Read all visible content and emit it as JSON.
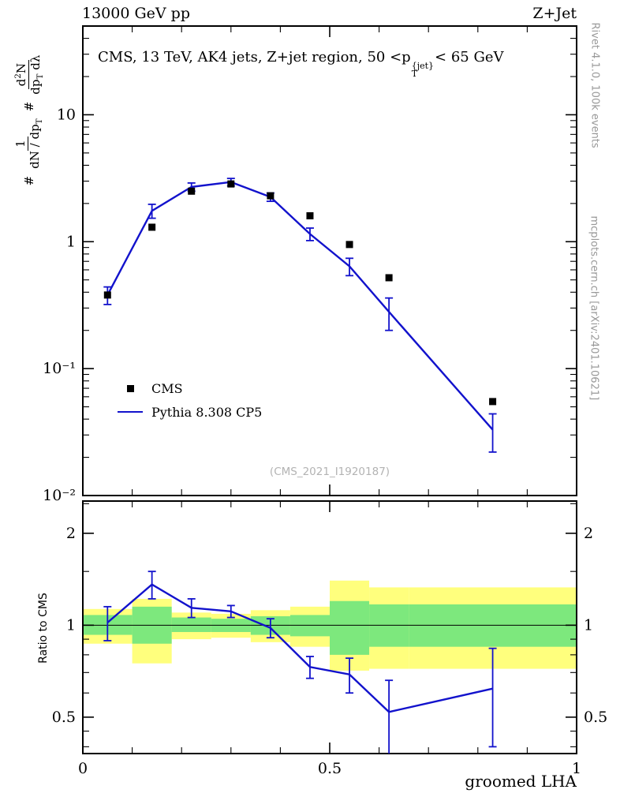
{
  "header": {
    "left": "13000 GeV pp",
    "right": "Z+Jet"
  },
  "title": {
    "part1": "CMS, 13 TeV, AK4 jets, Z+jet region, 50 <p",
    "sup": "{jet}",
    "sub": "T",
    "part2": "< 65 GeV"
  },
  "labels": {
    "ratio_ylabel": "Ratio to CMS",
    "side_top": "Rivet 4.1.0, 100k events",
    "side_bottom": "mcplots.cern.ch [arXiv:2401.10621]",
    "watermark": "(CMS_2021_I1920187)",
    "xlabel": "groomed LHA",
    "ylabel": {
      "hash1": "#",
      "frac1_num": "1",
      "frac1_den_a": "dN / dp",
      "frac1_den_sub": "T",
      "hash2": "#",
      "frac2_num_a": "d",
      "frac2_num_sup": "2",
      "frac2_num_b": "N",
      "frac2_den_a": "dp",
      "frac2_den_sub": "T",
      "frac2_den_b": " dλ"
    }
  },
  "legend": {
    "cms": "CMS",
    "pythia": "Pythia 8.308 CP5"
  },
  "colors": {
    "mc_line": "#1212cc",
    "data_marker": "#000000",
    "band_outer": "#ffff7d",
    "band_inner": "#7de87d"
  },
  "chart_data": {
    "type": "line",
    "title": "CMS, 13 TeV, AK4 jets, Z+jet region, 50 < pT{jet} < 65 GeV",
    "xlabel": "groomed LHA",
    "ylabel": "1/(dN/dpT) d2N/(dpT dλ)",
    "ratio_label": "Ratio to CMS",
    "legend_position": "middle-left",
    "grid": false,
    "xlim": [
      0,
      1
    ],
    "main_ylim_log": [
      0.01,
      50
    ],
    "ratio_ylim_log": [
      0.38,
      2.55
    ],
    "x_major_ticks": [
      {
        "v": 0,
        "label": "0"
      },
      {
        "v": 0.5,
        "label": "0.5"
      },
      {
        "v": 1,
        "label": "1"
      }
    ],
    "x_minor_step": 0.1,
    "main_y_ticks": [
      {
        "v": 10,
        "label": "10"
      },
      {
        "v": 1,
        "label": "1"
      },
      {
        "v": 0.1,
        "label": "10⁻¹"
      },
      {
        "v": 0.01,
        "label": "10⁻²"
      }
    ],
    "ratio_y_ticks": [
      {
        "v": 2,
        "label": "2"
      },
      {
        "v": 1,
        "label": "1"
      },
      {
        "v": 0.5,
        "label": "0.5"
      }
    ],
    "ratio_y_minor": [
      0.4,
      0.45,
      0.6,
      0.7,
      0.8,
      0.9,
      1.5,
      2.5
    ],
    "bin_edges": [
      0,
      0.1,
      0.18,
      0.26,
      0.34,
      0.42,
      0.5,
      0.58,
      0.66,
      1.0
    ],
    "x": [
      0.05,
      0.14,
      0.22,
      0.3,
      0.38,
      0.46,
      0.54,
      0.62,
      0.83
    ],
    "cms": {
      "name": "CMS",
      "values": [
        0.38,
        1.3,
        2.5,
        2.85,
        2.3,
        1.6,
        0.95,
        0.52,
        0.055
      ]
    },
    "pythia": {
      "name": "Pythia 8.308 CP5",
      "values": [
        0.38,
        1.75,
        2.7,
        2.95,
        2.25,
        1.15,
        0.64,
        0.28,
        0.033
      ],
      "err": [
        0.06,
        0.22,
        0.2,
        0.2,
        0.17,
        0.13,
        0.1,
        0.08,
        0.011
      ]
    },
    "ratio": {
      "values": [
        1.02,
        1.36,
        1.14,
        1.11,
        0.98,
        0.73,
        0.69,
        0.52,
        0.62
      ],
      "err": [
        0.13,
        0.14,
        0.08,
        0.05,
        0.07,
        0.06,
        0.09,
        0.14,
        0.22
      ],
      "yellow_lo": [
        0.87,
        0.75,
        0.9,
        0.91,
        0.88,
        0.85,
        0.71,
        0.72,
        0.72
      ],
      "yellow_hi": [
        1.13,
        1.22,
        1.1,
        1.09,
        1.12,
        1.15,
        1.4,
        1.33,
        1.33
      ],
      "green_lo": [
        0.93,
        0.87,
        0.95,
        0.95,
        0.93,
        0.92,
        0.8,
        0.85,
        0.85
      ],
      "green_hi": [
        1.08,
        1.15,
        1.06,
        1.05,
        1.07,
        1.08,
        1.2,
        1.17,
        1.17
      ]
    }
  }
}
